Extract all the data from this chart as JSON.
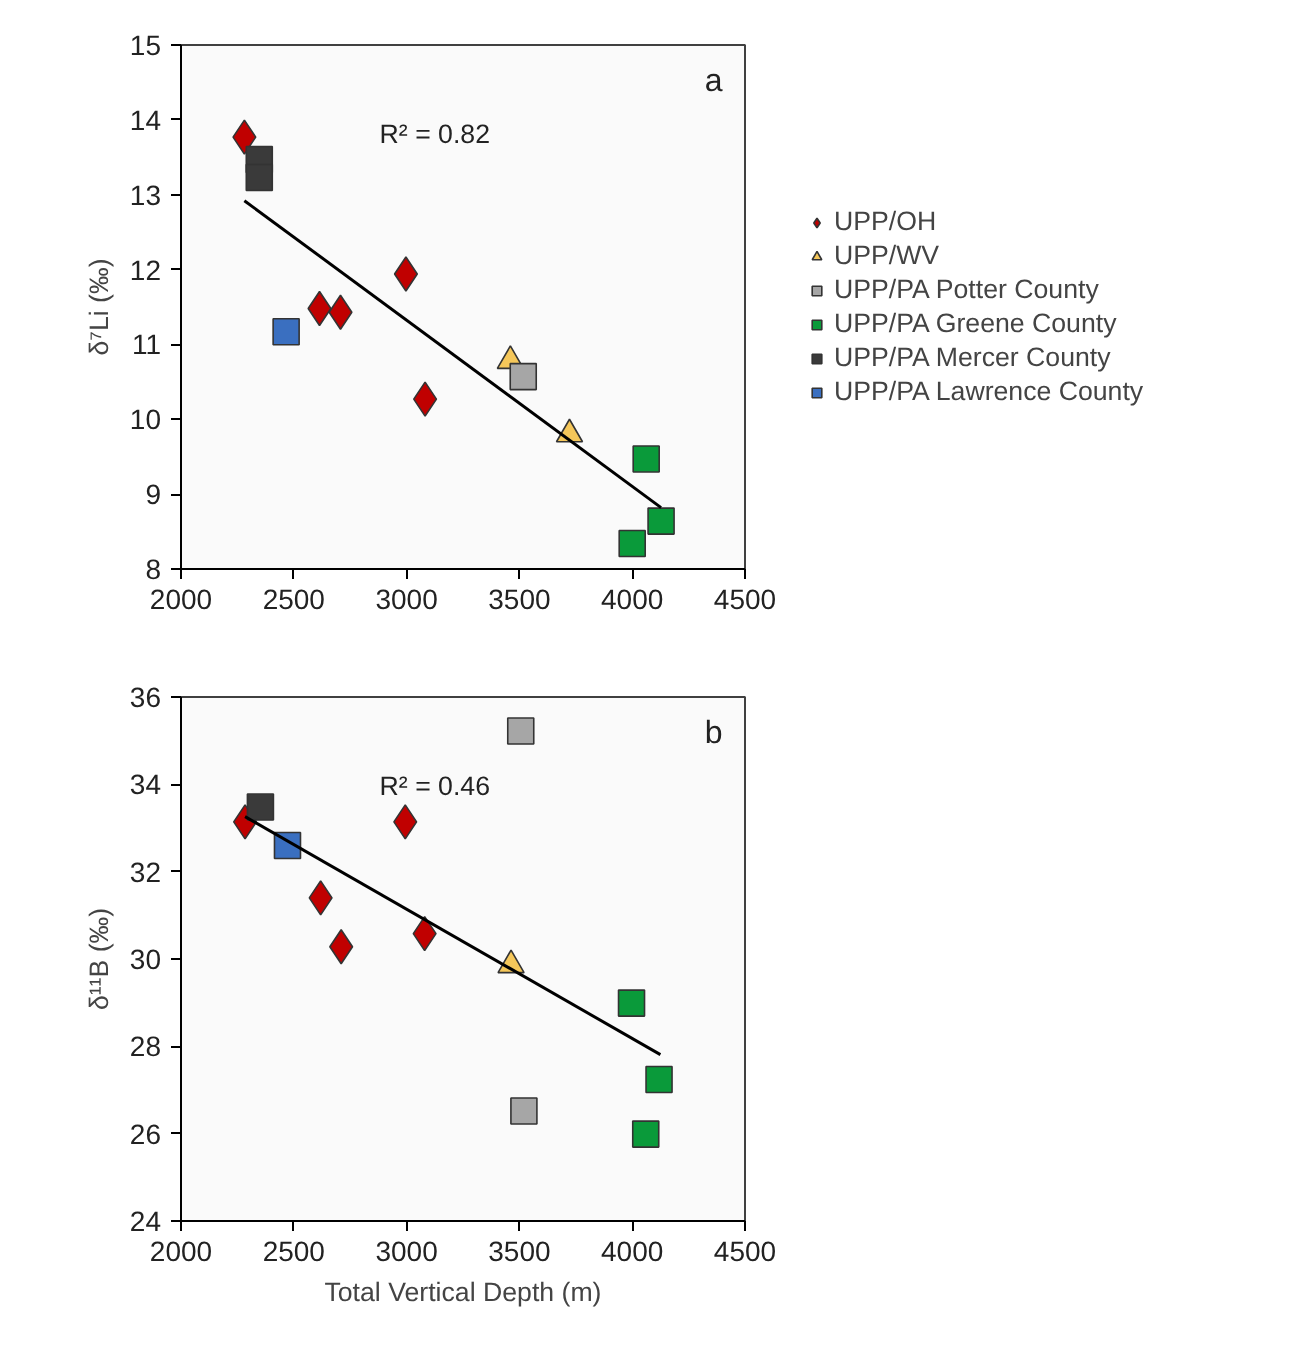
{
  "chart_data": [
    {
      "type": "scatter",
      "ylabel": "δ⁷Li (‰)",
      "xlim": [
        2000,
        4500
      ],
      "xticks": [
        2000,
        2500,
        3000,
        3500,
        4000,
        4500
      ],
      "ylim": [
        8,
        15
      ],
      "yticks": [
        8,
        9,
        10,
        11,
        12,
        13,
        14,
        15
      ],
      "grid": false,
      "legend": "right",
      "annotations": [
        "R² = 0.82",
        "a"
      ],
      "series": [
        {
          "name": "UPP/OH",
          "color": "#c00000",
          "marker": "diamond",
          "x": [
            2281,
            2614,
            2707,
            2997,
            3082
          ],
          "values": [
            13.77,
            11.48,
            11.43,
            11.94,
            10.27
          ]
        },
        {
          "name": "UPP/WV",
          "color": "#f5c75a",
          "marker": "triangle",
          "x": [
            3460,
            3722
          ],
          "values": [
            10.78,
            9.8
          ]
        },
        {
          "name": "UPP/PA Potter County",
          "color": "#a6a6a6",
          "marker": "square",
          "x": [
            3517
          ],
          "values": [
            10.57
          ]
        },
        {
          "name": "UPP/PA Greene County",
          "color": "#0a9a3a",
          "marker": "square",
          "x": [
            4062,
            4000,
            4128
          ],
          "values": [
            9.47,
            8.34,
            8.64
          ]
        },
        {
          "name": "UPP/PA Mercer County",
          "color": "#3a3a3a",
          "marker": "square",
          "x": [
            2347,
            2347
          ],
          "values": [
            13.47,
            13.23
          ]
        },
        {
          "name": "UPP/PA Lawrence County",
          "color": "#3a6fc0",
          "marker": "square",
          "x": [
            2466
          ],
          "values": [
            11.17
          ]
        },
        {
          "type": "line",
          "color": "#000000",
          "marker": "none",
          "x": [
            2281,
            4128
          ],
          "values": [
            12.92,
            8.82
          ]
        }
      ]
    },
    {
      "type": "scatter",
      "xlabel": "Total Vertical Depth (m)",
      "ylabel": "δ¹¹B (‰)",
      "xlim": [
        2000,
        4500
      ],
      "xticks": [
        2000,
        2500,
        3000,
        3500,
        4000,
        4500
      ],
      "ylim": [
        24,
        36
      ],
      "yticks": [
        24,
        26,
        28,
        30,
        32,
        34,
        36
      ],
      "grid": false,
      "annotations": [
        "R² = 0.46",
        "b"
      ],
      "series": [
        {
          "color": "#c00000",
          "marker": "diamond",
          "x": [
            2284,
            2619,
            2710,
            2994,
            3080
          ],
          "values": [
            33.14,
            31.4,
            30.28,
            33.14,
            30.58
          ]
        },
        {
          "color": "#f5c75a",
          "marker": "triangle",
          "x": [
            3463
          ],
          "values": [
            29.86
          ]
        },
        {
          "color": "#a6a6a6",
          "marker": "square",
          "x": [
            3506,
            3520
          ],
          "values": [
            35.22,
            26.52
          ]
        },
        {
          "color": "#0a9a3a",
          "marker": "square",
          "x": [
            3997,
            4119,
            4060
          ],
          "values": [
            28.99,
            27.24,
            25.99
          ]
        },
        {
          "color": "#3a3a3a",
          "marker": "square",
          "x": [
            2352
          ],
          "values": [
            33.48
          ]
        },
        {
          "color": "#3a6fc0",
          "marker": "square",
          "x": [
            2472
          ],
          "values": [
            32.6
          ]
        },
        {
          "type": "line",
          "color": "#000000",
          "marker": "none",
          "x": [
            2284,
            4125
          ],
          "values": [
            33.26,
            27.81
          ]
        }
      ]
    }
  ]
}
